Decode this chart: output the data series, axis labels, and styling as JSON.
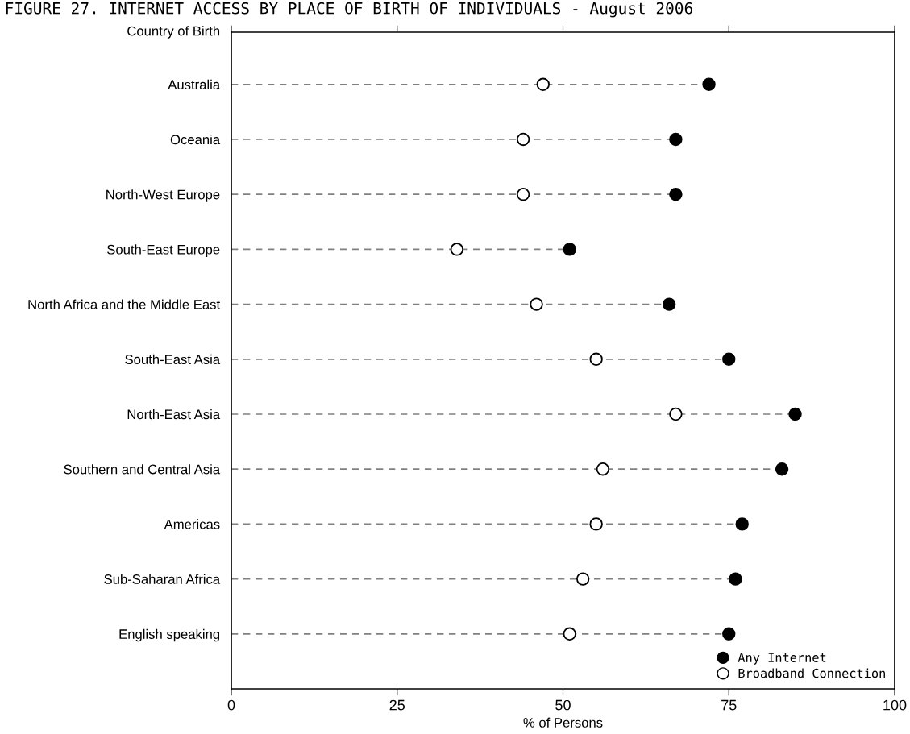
{
  "chart_data": {
    "type": "lollipop",
    "orientation": "horizontal",
    "title": "FIGURE 27. INTERNET ACCESS BY PLACE OF BIRTH OF INDIVIDUALS - August 2006",
    "xlabel": "% of Persons",
    "ylabel": "Country of Birth",
    "categories": [
      "Australia",
      "Oceania",
      "North-West Europe",
      "South-East Europe",
      "North Africa and the Middle East",
      "South-East Asia",
      "North-East Asia",
      "Southern and Central Asia",
      "Americas",
      "Sub-Saharan Africa",
      "English speaking"
    ],
    "series": [
      {
        "name": "Any Internet",
        "color": "#000000",
        "values": [
          72,
          67,
          67,
          51,
          66,
          75,
          85,
          83,
          77,
          76,
          75
        ]
      },
      {
        "name": "Broadband Connection",
        "color": "#ffffff",
        "values": [
          47,
          44,
          44,
          34,
          46,
          55,
          67,
          56,
          55,
          53,
          51
        ]
      }
    ],
    "xlim": [
      0,
      100
    ],
    "xticks": [
      0,
      25,
      50,
      75,
      100
    ],
    "marker": "circle",
    "line_style": "dashed",
    "grid": false,
    "legend": "bottom right"
  }
}
